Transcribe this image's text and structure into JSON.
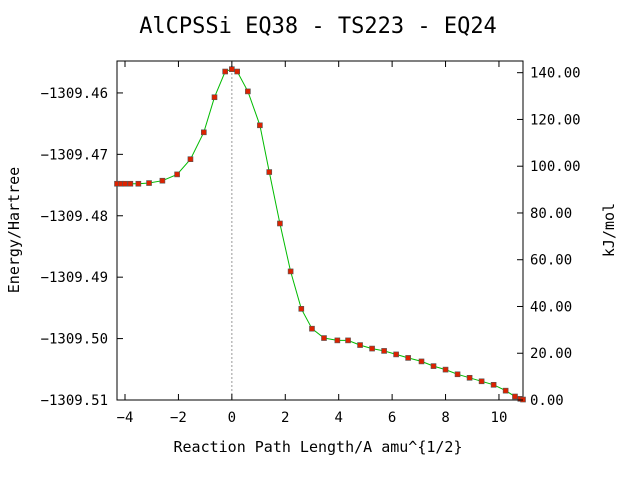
{
  "chart_data": {
    "type": "line",
    "title": "AlCPSSi   EQ38 - TS223 - EQ24",
    "xlabel": "Reaction Path Length/A amu^{1/2}",
    "ylabel_left": "Energy/Hartree",
    "ylabel_right": "kJ/mol",
    "xlim": [
      -4.3,
      10.9
    ],
    "ylim_left": [
      -1309.51,
      -1309.4548
    ],
    "ylim_right": [
      0,
      145
    ],
    "x_ticks": [
      -4,
      -2,
      0,
      2,
      4,
      6,
      8,
      10
    ],
    "x_tick_labels": [
      "−4",
      "−2",
      "0",
      "2",
      "4",
      "6",
      "8",
      "10"
    ],
    "y_left_ticks": [
      -1309.46,
      -1309.47,
      -1309.48,
      -1309.49,
      -1309.5,
      -1309.51
    ],
    "y_left_tick_labels": [
      "−1309.46",
      "−1309.47",
      "−1309.48",
      "−1309.49",
      "−1309.50",
      "−1309.51"
    ],
    "y_right_ticks": [
      140,
      120,
      100,
      80,
      60,
      40,
      20,
      0
    ],
    "y_right_tick_labels": [
      "140.00",
      "120.00",
      "100.00",
      "80.00",
      "60.00",
      "40.00",
      "20.00",
      "0.00"
    ],
    "transition_state_x": 0,
    "colors": {
      "line": "#00bb00",
      "marker": "#dd2200",
      "marker_edge": "#555555",
      "ts_line": "#999999"
    },
    "series": [
      {
        "values": [
          [
            -4.3,
            92.5
          ],
          [
            -4.15,
            92.5
          ],
          [
            -4.0,
            92.5
          ],
          [
            -3.8,
            92.5
          ],
          [
            -3.5,
            92.5
          ],
          [
            -3.1,
            92.8
          ],
          [
            -2.6,
            93.8
          ],
          [
            -2.05,
            96.5
          ],
          [
            -1.55,
            103.0
          ],
          [
            -1.05,
            114.5
          ],
          [
            -0.65,
            129.5
          ],
          [
            -0.25,
            140.5
          ],
          [
            0.0,
            141.5
          ],
          [
            0.2,
            140.5
          ],
          [
            0.6,
            132.0
          ],
          [
            1.05,
            117.5
          ],
          [
            1.4,
            97.5
          ],
          [
            1.8,
            75.5
          ],
          [
            2.2,
            55.0
          ],
          [
            2.6,
            39.0
          ],
          [
            3.0,
            30.5
          ],
          [
            3.45,
            26.5
          ],
          [
            3.95,
            25.5
          ],
          [
            4.35,
            25.5
          ],
          [
            4.8,
            23.5
          ],
          [
            5.25,
            22.0
          ],
          [
            5.7,
            21.0
          ],
          [
            6.15,
            19.5
          ],
          [
            6.6,
            18.0
          ],
          [
            7.1,
            16.5
          ],
          [
            7.55,
            14.5
          ],
          [
            8.0,
            13.0
          ],
          [
            8.45,
            11.0
          ],
          [
            8.9,
            9.5
          ],
          [
            9.35,
            8.0
          ],
          [
            9.8,
            6.5
          ],
          [
            10.25,
            4.0
          ],
          [
            10.6,
            1.5
          ],
          [
            10.8,
            0.5
          ],
          [
            10.9,
            0.2
          ]
        ]
      }
    ]
  }
}
